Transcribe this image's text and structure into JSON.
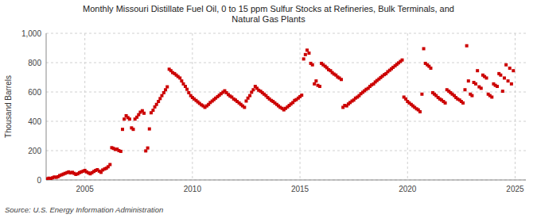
{
  "chart_data": {
    "type": "scatter",
    "title": "Monthly Missouri Distillate Fuel Oil, 0 to 15 ppm Sulfur Stocks at Refineries, Bulk Terminals, and\nNatural Gas Plants",
    "ylabel": "Thousand Barrels",
    "source": "Source: U.S. Energy Information Administration",
    "color": "#cc0000",
    "marker": "square",
    "grid": true,
    "xlim": [
      2003.2,
      2025.5
    ],
    "xticks": [
      2005,
      2010,
      2015,
      2020,
      2025
    ],
    "ylim": [
      0,
      1000
    ],
    "yticks": [
      0,
      200,
      400,
      600,
      800,
      {
        "value": 1000,
        "label": "1,000"
      }
    ],
    "x": [
      2003.25,
      2003.33,
      2003.42,
      2003.5,
      2003.58,
      2003.67,
      2003.75,
      2003.83,
      2003.92,
      2004.0,
      2004.08,
      2004.17,
      2004.25,
      2004.33,
      2004.42,
      2004.5,
      2004.58,
      2004.67,
      2004.75,
      2004.83,
      2004.92,
      2005.0,
      2005.08,
      2005.17,
      2005.25,
      2005.33,
      2005.42,
      2005.5,
      2005.58,
      2005.67,
      2005.75,
      2005.83,
      2005.92,
      2006.0,
      2006.08,
      2006.17,
      2006.25,
      2006.33,
      2006.42,
      2006.5,
      2006.58,
      2006.67,
      2006.75,
      2006.83,
      2006.92,
      2007.0,
      2007.08,
      2007.17,
      2007.25,
      2007.33,
      2007.42,
      2007.5,
      2007.58,
      2007.67,
      2007.75,
      2007.83,
      2007.92,
      2008.0,
      2008.08,
      2008.17,
      2008.25,
      2008.33,
      2008.42,
      2008.5,
      2008.58,
      2008.67,
      2008.75,
      2008.83,
      2008.92,
      2009.0,
      2009.08,
      2009.17,
      2009.25,
      2009.33,
      2009.42,
      2009.5,
      2009.58,
      2009.67,
      2009.75,
      2009.83,
      2009.92,
      2010.0,
      2010.08,
      2010.17,
      2010.25,
      2010.33,
      2010.42,
      2010.5,
      2010.58,
      2010.67,
      2010.75,
      2010.83,
      2010.92,
      2011.0,
      2011.08,
      2011.17,
      2011.25,
      2011.33,
      2011.42,
      2011.5,
      2011.58,
      2011.67,
      2011.75,
      2011.83,
      2011.92,
      2012.0,
      2012.08,
      2012.17,
      2012.25,
      2012.33,
      2012.42,
      2012.5,
      2012.58,
      2012.67,
      2012.75,
      2012.83,
      2012.92,
      2013.0,
      2013.08,
      2013.17,
      2013.25,
      2013.33,
      2013.42,
      2013.5,
      2013.58,
      2013.67,
      2013.75,
      2013.83,
      2013.92,
      2014.0,
      2014.08,
      2014.17,
      2014.25,
      2014.33,
      2014.42,
      2014.5,
      2014.58,
      2014.67,
      2014.75,
      2014.83,
      2014.92,
      2015.0,
      2015.08,
      2015.17,
      2015.25,
      2015.33,
      2015.42,
      2015.5,
      2015.58,
      2015.67,
      2015.75,
      2015.83,
      2015.92,
      2016.0,
      2016.08,
      2016.17,
      2016.25,
      2016.33,
      2016.42,
      2016.5,
      2016.58,
      2016.67,
      2016.75,
      2016.83,
      2016.92,
      2017.0,
      2017.08,
      2017.17,
      2017.25,
      2017.33,
      2017.42,
      2017.5,
      2017.58,
      2017.67,
      2017.75,
      2017.83,
      2017.92,
      2018.0,
      2018.08,
      2018.17,
      2018.25,
      2018.33,
      2018.42,
      2018.5,
      2018.58,
      2018.67,
      2018.75,
      2018.83,
      2018.92,
      2019.0,
      2019.08,
      2019.17,
      2019.25,
      2019.33,
      2019.42,
      2019.5,
      2019.58,
      2019.67,
      2019.75,
      2019.83,
      2019.92,
      2020.0,
      2020.08,
      2020.17,
      2020.25,
      2020.33,
      2020.42,
      2020.5,
      2020.58,
      2020.67,
      2020.75,
      2020.83,
      2020.92,
      2021.0,
      2021.08,
      2021.17,
      2021.25,
      2021.33,
      2021.42,
      2021.5,
      2021.58,
      2021.67,
      2021.75,
      2021.83,
      2021.92,
      2022.0,
      2022.08,
      2022.17,
      2022.25,
      2022.33,
      2022.42,
      2022.5,
      2022.58,
      2022.67,
      2022.75,
      2022.83,
      2022.92,
      2023.0,
      2023.08,
      2023.17,
      2023.25,
      2023.33,
      2023.42,
      2023.5,
      2023.58,
      2023.67,
      2023.75,
      2023.83,
      2023.92,
      2024.0,
      2024.08,
      2024.17,
      2024.25,
      2024.33,
      2024.42,
      2024.5,
      2024.58,
      2024.67,
      2024.75,
      2024.83,
      2024.92
    ],
    "values": [
      8,
      12,
      10,
      15,
      20,
      18,
      22,
      30,
      35,
      40,
      45,
      50,
      55,
      48,
      52,
      45,
      38,
      42,
      50,
      55,
      60,
      65,
      55,
      48,
      42,
      50,
      58,
      65,
      70,
      60,
      52,
      68,
      75,
      80,
      90,
      105,
      220,
      215,
      208,
      210,
      200,
      195,
      345,
      415,
      438,
      425,
      415,
      355,
      345,
      415,
      428,
      445,
      462,
      472,
      455,
      198,
      218,
      348,
      458,
      475,
      498,
      515,
      535,
      555,
      575,
      595,
      615,
      635,
      755,
      745,
      732,
      725,
      715,
      705,
      695,
      675,
      655,
      638,
      618,
      595,
      575,
      562,
      552,
      542,
      532,
      522,
      512,
      505,
      495,
      505,
      515,
      528,
      538,
      548,
      558,
      568,
      578,
      588,
      598,
      608,
      595,
      582,
      572,
      565,
      552,
      545,
      535,
      525,
      515,
      505,
      495,
      538,
      558,
      575,
      598,
      615,
      638,
      625,
      612,
      605,
      595,
      585,
      575,
      562,
      552,
      542,
      535,
      525,
      515,
      505,
      495,
      488,
      478,
      488,
      498,
      508,
      518,
      528,
      542,
      548,
      558,
      568,
      578,
      825,
      855,
      885,
      865,
      795,
      785,
      655,
      675,
      645,
      638,
      795,
      785,
      775,
      765,
      752,
      745,
      732,
      722,
      715,
      702,
      695,
      685,
      495,
      508,
      505,
      518,
      528,
      538,
      545,
      558,
      565,
      575,
      588,
      598,
      608,
      618,
      625,
      638,
      648,
      655,
      668,
      678,
      688,
      698,
      708,
      718,
      725,
      738,
      748,
      758,
      768,
      778,
      788,
      798,
      808,
      818,
      565,
      552,
      535,
      525,
      515,
      505,
      495,
      485,
      478,
      465,
      585,
      895,
      795,
      785,
      775,
      762,
      595,
      585,
      575,
      562,
      552,
      545,
      535,
      525,
      615,
      605,
      595,
      585,
      575,
      562,
      552,
      545,
      535,
      525,
      615,
      915,
      675,
      585,
      575,
      665,
      655,
      745,
      635,
      625,
      715,
      705,
      695,
      585,
      575,
      565,
      655,
      645,
      638,
      725,
      715,
      605,
      695,
      785,
      675,
      762,
      655,
      745
    ]
  }
}
